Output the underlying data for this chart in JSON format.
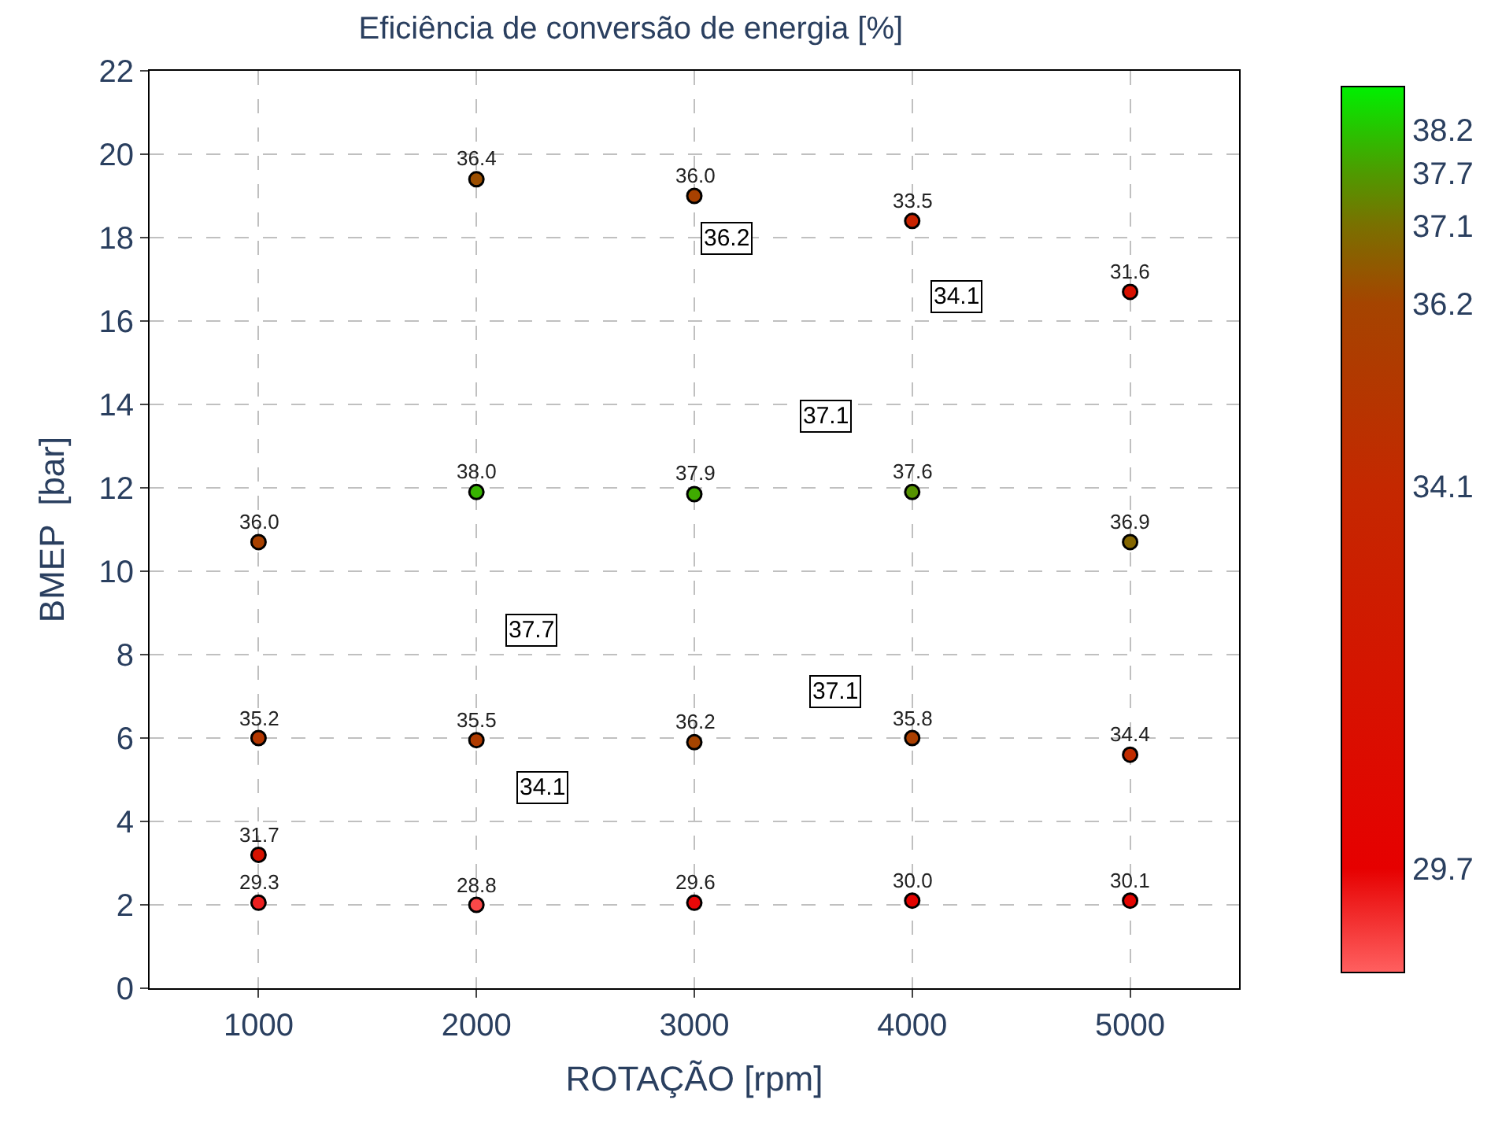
{
  "chart_data": {
    "type": "scatter",
    "title": "Eficiência de conversão de energia [%]",
    "xlabel": "ROTAÇÃO [rpm]",
    "ylabel": "BMEP  [bar]",
    "x": [
      1000,
      1000,
      1000,
      1000,
      2000,
      2000,
      2000,
      2000,
      3000,
      3000,
      3000,
      3000,
      4000,
      4000,
      4000,
      4000,
      5000,
      5000,
      5000,
      5000
    ],
    "values": [
      10.7,
      6.0,
      3.2,
      2.05,
      19.4,
      11.9,
      5.95,
      2.0,
      19.0,
      11.85,
      5.9,
      2.05,
      18.4,
      11.9,
      6.0,
      2.1,
      16.7,
      10.7,
      5.6,
      2.1
    ],
    "cvalues": [
      36.0,
      35.2,
      31.7,
      29.3,
      36.4,
      38.0,
      35.5,
      28.8,
      36.0,
      37.9,
      36.2,
      29.6,
      33.5,
      37.6,
      35.8,
      30.0,
      31.6,
      36.9,
      34.4,
      30.1
    ],
    "xlim": [
      500,
      5500
    ],
    "xticks": [
      1000,
      2000,
      3000,
      4000,
      5000
    ],
    "ylim": [
      0,
      22
    ],
    "yticks": [
      0,
      2,
      4,
      6,
      8,
      10,
      12,
      14,
      16,
      18,
      20,
      22
    ],
    "clim": [
      28.5,
      38.7
    ],
    "cticks": [
      29.7,
      34.1,
      36.2,
      37.1,
      37.7,
      38.2
    ],
    "annotations": [
      {
        "text": "36.0",
        "x": 1000,
        "y": 10.7
      },
      {
        "text": "35.2",
        "x": 1000,
        "y": 6.0
      },
      {
        "text": "31.7",
        "x": 1000,
        "y": 3.2
      },
      {
        "text": "29.3",
        "x": 1000,
        "y": 2.05
      },
      {
        "text": "36.4",
        "x": 2000,
        "y": 19.4
      },
      {
        "text": "38.0",
        "x": 2000,
        "y": 11.9
      },
      {
        "text": "35.5",
        "x": 2000,
        "y": 5.95
      },
      {
        "text": "28.8",
        "x": 2000,
        "y": 2.0
      },
      {
        "text": "36.0",
        "x": 3000,
        "y": 19.0
      },
      {
        "text": "37.9",
        "x": 3000,
        "y": 11.85
      },
      {
        "text": "36.2",
        "x": 3000,
        "y": 5.9
      },
      {
        "text": "29.6",
        "x": 3000,
        "y": 2.05
      },
      {
        "text": "33.5",
        "x": 4000,
        "y": 18.4
      },
      {
        "text": "37.6",
        "x": 4000,
        "y": 11.9
      },
      {
        "text": "35.8",
        "x": 4000,
        "y": 6.0
      },
      {
        "text": "30.0",
        "x": 4000,
        "y": 2.1
      },
      {
        "text": "31.6",
        "x": 5000,
        "y": 16.7
      },
      {
        "text": "36.9",
        "x": 5000,
        "y": 10.7
      },
      {
        "text": "34.4",
        "x": 5000,
        "y": 5.6
      },
      {
        "text": "30.1",
        "x": 5000,
        "y": 2.1
      },
      {
        "text": "36.2",
        "x": 3150,
        "y": 18.0
      },
      {
        "text": "34.1",
        "x": 4200,
        "y": 16.6
      },
      {
        "text": "37.1",
        "x": 3600,
        "y": 13.7
      },
      {
        "text": "37.7",
        "x": 2250,
        "y": 8.6
      },
      {
        "text": "37.1",
        "x": 3650,
        "y": 7.1
      },
      {
        "text": "34.1",
        "x": 2300,
        "y": 4.8
      }
    ],
    "grid": true
  }
}
